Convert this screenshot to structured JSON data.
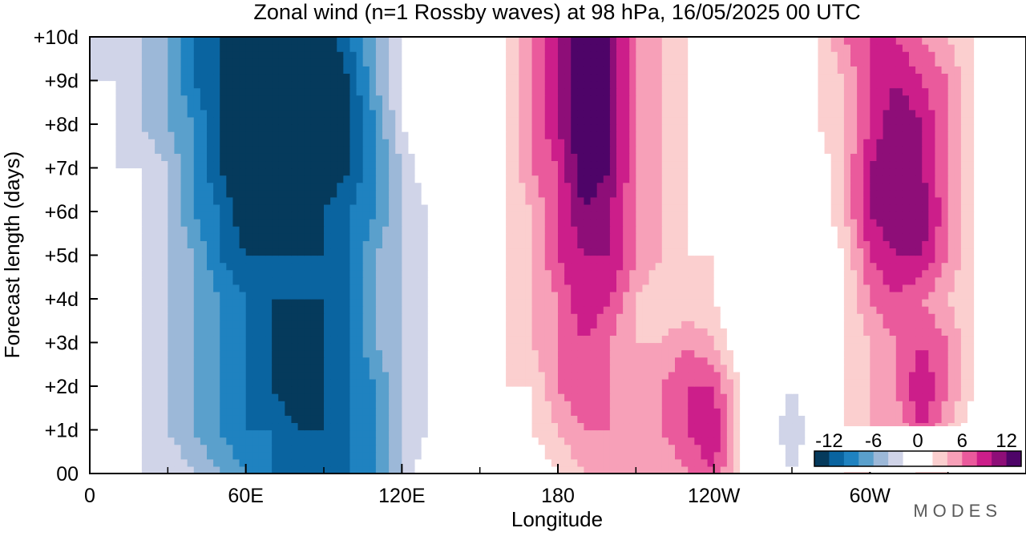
{
  "chart_data": {
    "type": "heatmap",
    "title": "Zonal wind (n=1 Rossby waves) at 98 hPa,  16/05/2025  00 UTC",
    "xlabel": "Longitude",
    "ylabel": "Forecast length (days)",
    "x_ticks": [
      "0",
      "60E",
      "120E",
      "180",
      "120W",
      "60W"
    ],
    "x_tick_values": [
      0,
      60,
      120,
      180,
      240,
      300
    ],
    "xlim": [
      0,
      360
    ],
    "y_ticks": [
      "00",
      "+1d",
      "+2d",
      "+3d",
      "+4d",
      "+5d",
      "+6d",
      "+7d",
      "+8d",
      "+9d",
      "+10d"
    ],
    "y_tick_values": [
      0,
      1,
      2,
      3,
      4,
      5,
      6,
      7,
      8,
      9,
      10
    ],
    "ylim": [
      0,
      10
    ],
    "colorbar": {
      "tick_labels": [
        "-12",
        "-6",
        "0",
        "6",
        "12"
      ],
      "tick_values": [
        -12,
        -6,
        0,
        6,
        12
      ],
      "levels": [
        -14,
        -12,
        -10,
        -8,
        -6,
        -4,
        -2,
        0,
        2,
        4,
        6,
        8,
        10,
        12,
        14
      ],
      "colors": [
        "#053a5c",
        "#0a64a0",
        "#1f82c0",
        "#5aa0cc",
        "#9cb8d8",
        "#d0d4e8",
        "#ffffff",
        "#ffffff",
        "#fbcfcf",
        "#f7a0b8",
        "#ea5a9c",
        "#cc1e8a",
        "#8e0e78",
        "#4e0468"
      ]
    },
    "field": {
      "rows_y": [
        0,
        1,
        2,
        3,
        4,
        5,
        6,
        7,
        8,
        9,
        10
      ],
      "cols_x": [
        0,
        10,
        20,
        30,
        40,
        50,
        60,
        70,
        80,
        90,
        100,
        110,
        120,
        130,
        140,
        150,
        160,
        170,
        180,
        190,
        200,
        210,
        220,
        230,
        240,
        250,
        260,
        270,
        280,
        290,
        300,
        310,
        320,
        330,
        340,
        350,
        360
      ],
      "values": [
        [
          0,
          0,
          -2,
          -2,
          -4,
          -6,
          -8,
          -10,
          -10,
          -10,
          -10,
          -8,
          -4,
          0,
          0,
          0,
          0,
          0,
          2,
          4,
          6,
          4,
          4,
          6,
          8,
          2,
          0,
          -2,
          0,
          2,
          2,
          0,
          2,
          2,
          0,
          0,
          0
        ],
        [
          0,
          0,
          -2,
          -4,
          -6,
          -8,
          -10,
          -10,
          -12,
          -12,
          -10,
          -8,
          -4,
          -2,
          0,
          0,
          0,
          2,
          4,
          6,
          6,
          4,
          6,
          8,
          10,
          2,
          0,
          -4,
          0,
          2,
          4,
          4,
          8,
          4,
          0,
          0,
          0
        ],
        [
          0,
          0,
          -2,
          -4,
          -6,
          -8,
          -10,
          -12,
          -14,
          -12,
          -10,
          -8,
          -4,
          -2,
          0,
          0,
          2,
          2,
          6,
          8,
          6,
          4,
          6,
          8,
          8,
          2,
          0,
          -2,
          0,
          2,
          4,
          6,
          10,
          6,
          2,
          0,
          0
        ],
        [
          0,
          0,
          -2,
          -4,
          -6,
          -8,
          -10,
          -12,
          -14,
          -12,
          -10,
          -6,
          -4,
          -2,
          0,
          0,
          2,
          4,
          6,
          8,
          6,
          4,
          4,
          6,
          4,
          0,
          0,
          -2,
          0,
          2,
          4,
          6,
          8,
          6,
          2,
          0,
          0
        ],
        [
          2,
          0,
          -2,
          -4,
          -6,
          -8,
          -10,
          -12,
          -12,
          -12,
          -10,
          -6,
          -4,
          -2,
          0,
          0,
          2,
          4,
          6,
          10,
          8,
          4,
          2,
          2,
          2,
          0,
          0,
          0,
          0,
          2,
          6,
          8,
          6,
          4,
          2,
          0,
          0
        ],
        [
          0,
          0,
          -2,
          -4,
          -6,
          -10,
          -12,
          -12,
          -12,
          -12,
          -10,
          -6,
          -4,
          -2,
          0,
          0,
          2,
          4,
          8,
          10,
          10,
          6,
          4,
          2,
          2,
          0,
          0,
          0,
          0,
          2,
          8,
          10,
          10,
          6,
          2,
          0,
          0
        ],
        [
          0,
          0,
          -2,
          -4,
          -8,
          -10,
          -14,
          -14,
          -14,
          -12,
          -10,
          -8,
          -4,
          -2,
          0,
          0,
          2,
          4,
          8,
          12,
          10,
          6,
          4,
          2,
          0,
          0,
          0,
          -2,
          0,
          4,
          10,
          12,
          12,
          6,
          2,
          0,
          0
        ],
        [
          0,
          -2,
          -2,
          -4,
          -8,
          -12,
          -14,
          -14,
          -14,
          -14,
          -12,
          -8,
          -4,
          0,
          0,
          0,
          2,
          6,
          8,
          14,
          12,
          6,
          4,
          2,
          2,
          0,
          0,
          0,
          0,
          4,
          10,
          12,
          10,
          6,
          2,
          0,
          0
        ],
        [
          0,
          -2,
          -4,
          -6,
          -8,
          -12,
          -14,
          -14,
          -14,
          -14,
          -12,
          -8,
          -2,
          0,
          0,
          0,
          2,
          6,
          10,
          14,
          12,
          6,
          4,
          2,
          0,
          0,
          0,
          0,
          2,
          4,
          8,
          12,
          10,
          6,
          2,
          0,
          0
        ],
        [
          -2,
          -2,
          -4,
          -6,
          -10,
          -12,
          -14,
          -14,
          -14,
          -14,
          -12,
          -6,
          -2,
          0,
          2,
          0,
          2,
          6,
          10,
          14,
          12,
          6,
          4,
          2,
          0,
          0,
          0,
          0,
          2,
          4,
          8,
          10,
          8,
          6,
          2,
          0,
          0
        ],
        [
          -2,
          -4,
          -4,
          -6,
          -10,
          -12,
          -14,
          -14,
          -14,
          -14,
          -10,
          -6,
          -2,
          0,
          2,
          0,
          2,
          6,
          10,
          14,
          12,
          6,
          4,
          2,
          0,
          0,
          0,
          0,
          2,
          6,
          8,
          8,
          6,
          4,
          2,
          -2,
          0
        ]
      ]
    }
  },
  "branding": {
    "logo_text": "MODES"
  }
}
